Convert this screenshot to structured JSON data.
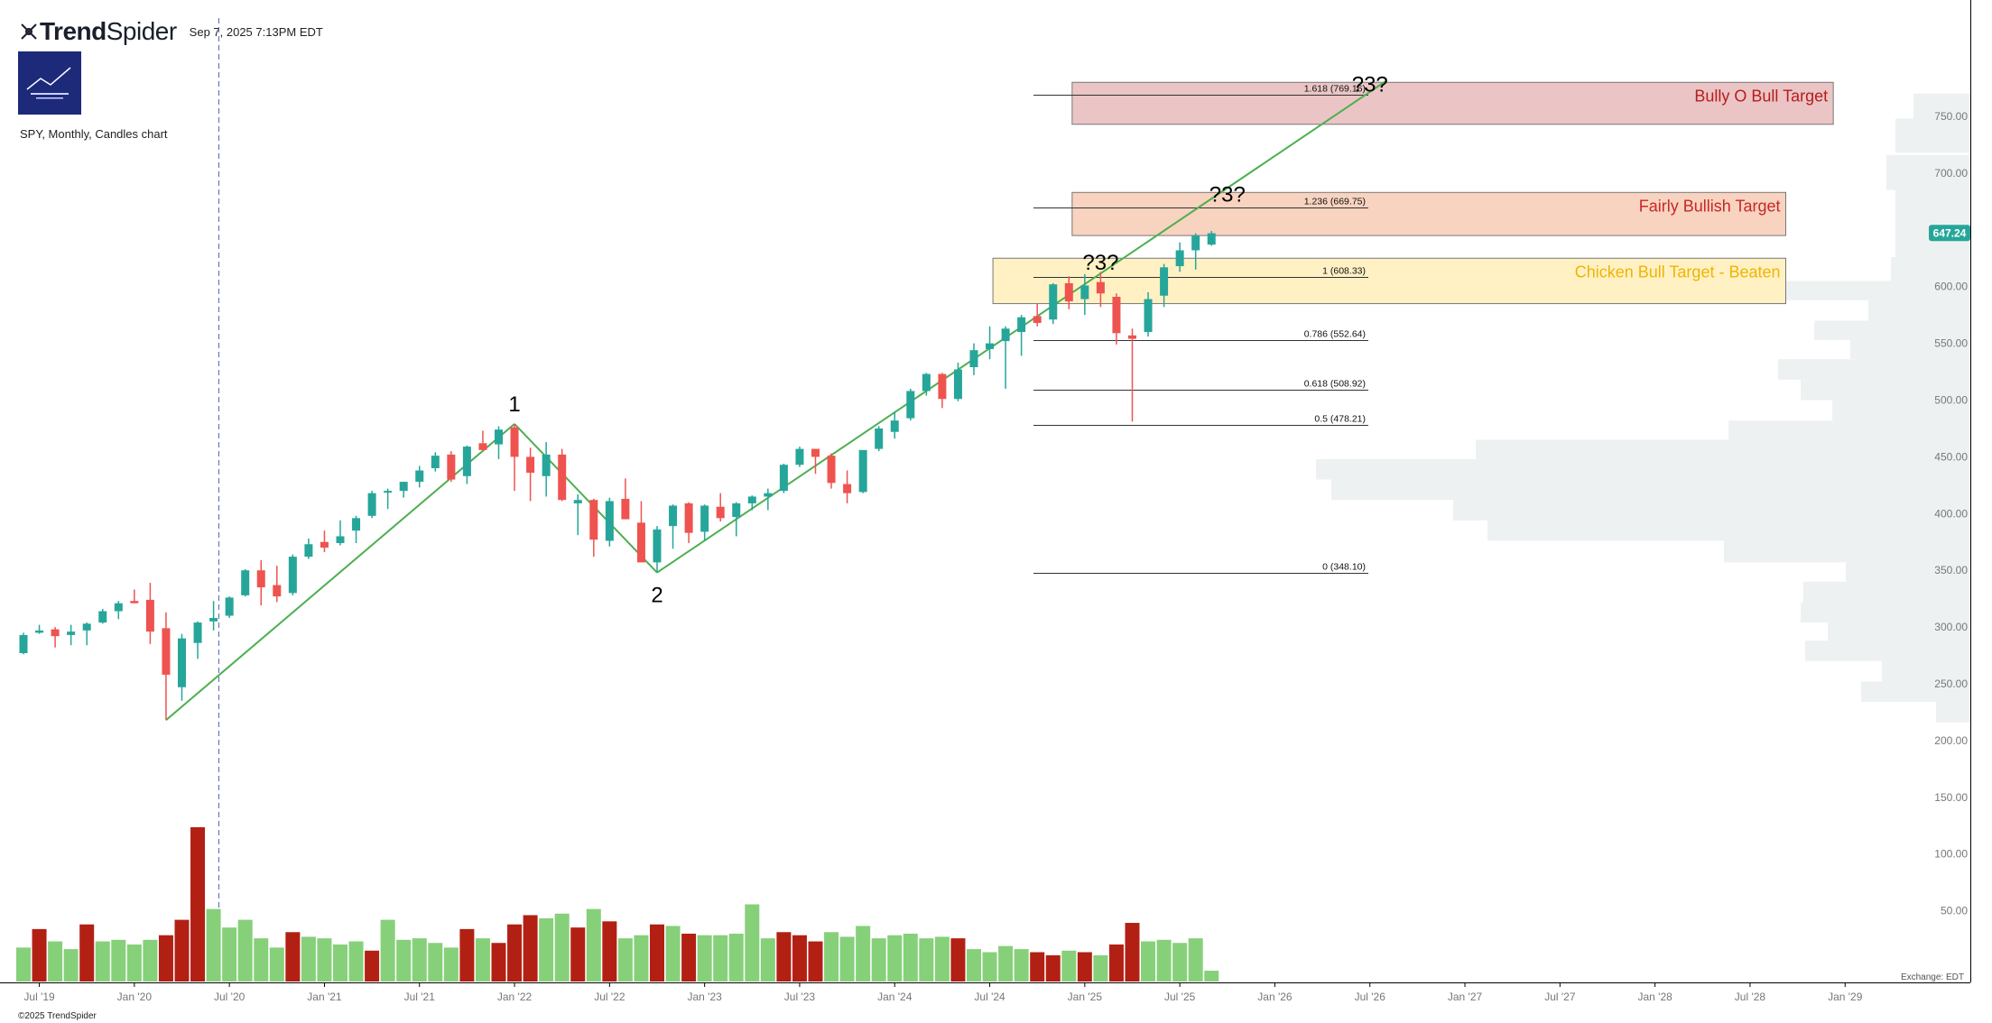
{
  "app": {
    "brand_prefix": "Trend",
    "brand_suffix": "Spider",
    "timestamp": "Sep 7, 2025 7:13PM EDT",
    "subtitle": "SPY, Monthly, Candles chart",
    "copyright": "©2025 TrendSpider",
    "exchange_label": "Exchange: EDT",
    "price_badge": "647.24",
    "icons": {
      "logo": "trendspider-logo-icon"
    },
    "colors": {
      "up": "#26a69a",
      "down": "#ef5350",
      "vol_up": "#86d07a",
      "vol_down": "#b22014",
      "trend": "#4caf50",
      "badge": "#26a69a"
    }
  },
  "chart_data": {
    "type": "candlestick",
    "symbol": "SPY",
    "interval": "Monthly",
    "x_tick_labels": [
      "Jul '19",
      "Jan '20",
      "Jul '20",
      "Jan '21",
      "Jul '21",
      "Jan '22",
      "Jul '22",
      "Jan '23",
      "Jul '23",
      "Jan '24",
      "Jul '24",
      "Jan '25",
      "Jul '25",
      "Jan '26",
      "Jul '26",
      "Jan '27",
      "Jul '27",
      "Jan '28",
      "Jul '28",
      "Jan '29"
    ],
    "y_tick_labels": [
      "50.00",
      "100.00",
      "150.00",
      "200.00",
      "250.00",
      "300.00",
      "350.00",
      "400.00",
      "450.00",
      "500.00",
      "550.00",
      "600.00",
      "650.00",
      "700.00",
      "750.00"
    ],
    "ylim": [
      0,
      800
    ],
    "candles": [
      {
        "date": "2019-06",
        "o": 277,
        "h": 295,
        "l": 276,
        "c": 293
      },
      {
        "date": "2019-07",
        "o": 295,
        "h": 302,
        "l": 294,
        "c": 297
      },
      {
        "date": "2019-08",
        "o": 298,
        "h": 300,
        "l": 282,
        "c": 292
      },
      {
        "date": "2019-09",
        "o": 293,
        "h": 302,
        "l": 284,
        "c": 296
      },
      {
        "date": "2019-10",
        "o": 297,
        "h": 304,
        "l": 284,
        "c": 303
      },
      {
        "date": "2019-11",
        "o": 304,
        "h": 316,
        "l": 303,
        "c": 314
      },
      {
        "date": "2019-12",
        "o": 314,
        "h": 323,
        "l": 307,
        "c": 321
      },
      {
        "date": "2020-01",
        "o": 323,
        "h": 333,
        "l": 321,
        "c": 321
      },
      {
        "date": "2020-02",
        "o": 324,
        "h": 339,
        "l": 285,
        "c": 296
      },
      {
        "date": "2020-03",
        "o": 299,
        "h": 313,
        "l": 218,
        "c": 258
      },
      {
        "date": "2020-04",
        "o": 247,
        "h": 294,
        "l": 235,
        "c": 290
      },
      {
        "date": "2020-05",
        "o": 286,
        "h": 305,
        "l": 272,
        "c": 304
      },
      {
        "date": "2020-06",
        "o": 305,
        "h": 323,
        "l": 297,
        "c": 308
      },
      {
        "date": "2020-07",
        "o": 310,
        "h": 327,
        "l": 308,
        "c": 326
      },
      {
        "date": "2020-08",
        "o": 328,
        "h": 351,
        "l": 327,
        "c": 350
      },
      {
        "date": "2020-09",
        "o": 350,
        "h": 359,
        "l": 319,
        "c": 335
      },
      {
        "date": "2020-10",
        "o": 337,
        "h": 354,
        "l": 322,
        "c": 327
      },
      {
        "date": "2020-11",
        "o": 330,
        "h": 364,
        "l": 328,
        "c": 362
      },
      {
        "date": "2020-12",
        "o": 362,
        "h": 378,
        "l": 360,
        "c": 373
      },
      {
        "date": "2021-01",
        "o": 375,
        "h": 385,
        "l": 366,
        "c": 370
      },
      {
        "date": "2021-02",
        "o": 374,
        "h": 394,
        "l": 372,
        "c": 380
      },
      {
        "date": "2021-03",
        "o": 385,
        "h": 398,
        "l": 374,
        "c": 396
      },
      {
        "date": "2021-04",
        "o": 398,
        "h": 420,
        "l": 396,
        "c": 418
      },
      {
        "date": "2021-05",
        "o": 419,
        "h": 422,
        "l": 404,
        "c": 420
      },
      {
        "date": "2021-06",
        "o": 420,
        "h": 428,
        "l": 414,
        "c": 428
      },
      {
        "date": "2021-07",
        "o": 428,
        "h": 442,
        "l": 423,
        "c": 438
      },
      {
        "date": "2021-08",
        "o": 440,
        "h": 454,
        "l": 437,
        "c": 451
      },
      {
        "date": "2021-09",
        "o": 452,
        "h": 455,
        "l": 428,
        "c": 430
      },
      {
        "date": "2021-10",
        "o": 433,
        "h": 460,
        "l": 426,
        "c": 459
      },
      {
        "date": "2021-11",
        "o": 462,
        "h": 473,
        "l": 455,
        "c": 456
      },
      {
        "date": "2021-12",
        "o": 461,
        "h": 477,
        "l": 448,
        "c": 474
      },
      {
        "date": "2022-01",
        "o": 476,
        "h": 479,
        "l": 420,
        "c": 450
      },
      {
        "date": "2022-02",
        "o": 450,
        "h": 458,
        "l": 411,
        "c": 436
      },
      {
        "date": "2022-03",
        "o": 433,
        "h": 463,
        "l": 415,
        "c": 452
      },
      {
        "date": "2022-04",
        "o": 452,
        "h": 457,
        "l": 411,
        "c": 412
      },
      {
        "date": "2022-05",
        "o": 409,
        "h": 417,
        "l": 381,
        "c": 412
      },
      {
        "date": "2022-06",
        "o": 412,
        "h": 413,
        "l": 362,
        "c": 377
      },
      {
        "date": "2022-07",
        "o": 376,
        "h": 414,
        "l": 371,
        "c": 411
      },
      {
        "date": "2022-08",
        "o": 413,
        "h": 431,
        "l": 395,
        "c": 395
      },
      {
        "date": "2022-09",
        "o": 392,
        "h": 411,
        "l": 357,
        "c": 357
      },
      {
        "date": "2022-10",
        "o": 357,
        "h": 389,
        "l": 348,
        "c": 386
      },
      {
        "date": "2022-11",
        "o": 389,
        "h": 408,
        "l": 369,
        "c": 407
      },
      {
        "date": "2022-12",
        "o": 409,
        "h": 410,
        "l": 374,
        "c": 383
      },
      {
        "date": "2023-01",
        "o": 384,
        "h": 408,
        "l": 376,
        "c": 407
      },
      {
        "date": "2023-02",
        "o": 406,
        "h": 418,
        "l": 393,
        "c": 396
      },
      {
        "date": "2023-03",
        "o": 397,
        "h": 410,
        "l": 380,
        "c": 409
      },
      {
        "date": "2023-04",
        "o": 409,
        "h": 416,
        "l": 403,
        "c": 415
      },
      {
        "date": "2023-05",
        "o": 415,
        "h": 422,
        "l": 403,
        "c": 418
      },
      {
        "date": "2023-06",
        "o": 420,
        "h": 444,
        "l": 418,
        "c": 443
      },
      {
        "date": "2023-07",
        "o": 443,
        "h": 459,
        "l": 441,
        "c": 457
      },
      {
        "date": "2023-08",
        "o": 457,
        "h": 457,
        "l": 435,
        "c": 450
      },
      {
        "date": "2023-09",
        "o": 451,
        "h": 453,
        "l": 422,
        "c": 427
      },
      {
        "date": "2023-10",
        "o": 426,
        "h": 438,
        "l": 409,
        "c": 418
      },
      {
        "date": "2023-11",
        "o": 419,
        "h": 456,
        "l": 418,
        "c": 456
      },
      {
        "date": "2023-12",
        "o": 457,
        "h": 477,
        "l": 455,
        "c": 475
      },
      {
        "date": "2024-01",
        "o": 472,
        "h": 490,
        "l": 466,
        "c": 482
      },
      {
        "date": "2024-02",
        "o": 484,
        "h": 510,
        "l": 482,
        "c": 508
      },
      {
        "date": "2024-03",
        "o": 508,
        "h": 524,
        "l": 504,
        "c": 523
      },
      {
        "date": "2024-04",
        "o": 523,
        "h": 524,
        "l": 493,
        "c": 501
      },
      {
        "date": "2024-05",
        "o": 501,
        "h": 533,
        "l": 499,
        "c": 527
      },
      {
        "date": "2024-06",
        "o": 529,
        "h": 550,
        "l": 522,
        "c": 544
      },
      {
        "date": "2024-07",
        "o": 545,
        "h": 565,
        "l": 536,
        "c": 550
      },
      {
        "date": "2024-08",
        "o": 552,
        "h": 565,
        "l": 510,
        "c": 563
      },
      {
        "date": "2024-09",
        "o": 560,
        "h": 575,
        "l": 539,
        "c": 573
      },
      {
        "date": "2024-10",
        "o": 574,
        "h": 585,
        "l": 565,
        "c": 568
      },
      {
        "date": "2024-11",
        "o": 571,
        "h": 603,
        "l": 567,
        "c": 602
      },
      {
        "date": "2024-12",
        "o": 603,
        "h": 609,
        "l": 580,
        "c": 587
      },
      {
        "date": "2025-01",
        "o": 589,
        "h": 611,
        "l": 575,
        "c": 601
      },
      {
        "date": "2025-02",
        "o": 604,
        "h": 613,
        "l": 582,
        "c": 594
      },
      {
        "date": "2025-03",
        "o": 591,
        "h": 594,
        "l": 549,
        "c": 559
      },
      {
        "date": "2025-04",
        "o": 557,
        "h": 563,
        "l": 481,
        "c": 554
      },
      {
        "date": "2025-05",
        "o": 560,
        "h": 595,
        "l": 556,
        "c": 589
      },
      {
        "date": "2025-06",
        "o": 592,
        "h": 620,
        "l": 582,
        "c": 617
      },
      {
        "date": "2025-07",
        "o": 618,
        "h": 639,
        "l": 613,
        "c": 632
      },
      {
        "date": "2025-08",
        "o": 632,
        "h": 647,
        "l": 615,
        "c": 645
      },
      {
        "date": "2025-09",
        "o": 637,
        "h": 649,
        "l": 636,
        "c": 647
      }
    ],
    "volume_relative": [
      0.22,
      0.34,
      0.26,
      0.21,
      0.37,
      0.26,
      0.27,
      0.24,
      0.27,
      0.3,
      0.4,
      1.0,
      0.47,
      0.35,
      0.4,
      0.28,
      0.22,
      0.32,
      0.29,
      0.28,
      0.24,
      0.26,
      0.2,
      0.4,
      0.27,
      0.28,
      0.25,
      0.22,
      0.34,
      0.28,
      0.25,
      0.37,
      0.43,
      0.41,
      0.44,
      0.35,
      0.47,
      0.39,
      0.28,
      0.3,
      0.37,
      0.36,
      0.31,
      0.3,
      0.3,
      0.31,
      0.5,
      0.28,
      0.32,
      0.3,
      0.26,
      0.32,
      0.29,
      0.36,
      0.28,
      0.3,
      0.31,
      0.28,
      0.29,
      0.28,
      0.21,
      0.19,
      0.23,
      0.21,
      0.19,
      0.17,
      0.2,
      0.19,
      0.17,
      0.24,
      0.38,
      0.26,
      0.27,
      0.25,
      0.28,
      0.07
    ],
    "volume_down": [
      false,
      true,
      false,
      false,
      true,
      false,
      false,
      false,
      false,
      true,
      true,
      true,
      false,
      false,
      false,
      false,
      false,
      true,
      false,
      false,
      false,
      false,
      true,
      false,
      false,
      false,
      false,
      false,
      true,
      false,
      true,
      true,
      true,
      false,
      false,
      true,
      false,
      true,
      false,
      false,
      true,
      false,
      true,
      false,
      false,
      false,
      false,
      false,
      true,
      true,
      true,
      false,
      false,
      false,
      false,
      false,
      false,
      false,
      false,
      true,
      false,
      false,
      false,
      false,
      true,
      true,
      false,
      true,
      false,
      true,
      true,
      false,
      false,
      false,
      false,
      false
    ],
    "fib_levels": [
      {
        "ratio": "1.618",
        "price": 769.16,
        "label": "1.618 (769.16)"
      },
      {
        "ratio": "1.236",
        "price": 669.75,
        "label": "1.236 (669.75)"
      },
      {
        "ratio": "1",
        "price": 608.33,
        "label": "1 (608.33)"
      },
      {
        "ratio": "0.786",
        "price": 552.64,
        "label": "0.786 (552.64)"
      },
      {
        "ratio": "0.618",
        "price": 508.92,
        "label": "0.618 (508.92)"
      },
      {
        "ratio": "0.5",
        "price": 478.21,
        "label": "0.5 (478.21)"
      },
      {
        "ratio": "0",
        "price": 348.1,
        "label": "0 (348.10)"
      }
    ],
    "target_zones": [
      {
        "label": "Bully O Bull Target",
        "top": 780,
        "bottom": 743,
        "fill": "#ebc5c5",
        "stroke": "#777",
        "text_color": "#b71c1c",
        "start": "2025-01",
        "end": "2028-11"
      },
      {
        "label": "Fairly Bullish Target",
        "top": 683,
        "bottom": 645,
        "fill": "#f8d3c0",
        "stroke": "#777",
        "text_color": "#c62828",
        "start": "2025-01",
        "end": "2028-08"
      },
      {
        "label": "Chicken Bull Target - Beaten",
        "top": 625,
        "bottom": 585,
        "fill": "#fff1c4",
        "stroke": "#777",
        "text_color": "#f0b400",
        "start": "2024-08",
        "end": "2028-08"
      }
    ],
    "question_marks": [
      {
        "text": "?3?",
        "price": 772,
        "date": "2026-07"
      },
      {
        "text": "?3?",
        "price": 675,
        "date": "2025-10"
      },
      {
        "text": "?3?",
        "price": 615,
        "date": "2025-02"
      }
    ],
    "wave_labels": [
      {
        "text": "1",
        "price": 490
      },
      {
        "text": "2",
        "price": 322
      }
    ],
    "trendlines": [
      {
        "from": {
          "date": "2020-03",
          "price": 218
        },
        "to": {
          "date": "2022-01",
          "price": 479
        }
      },
      {
        "from": {
          "date": "2022-01",
          "price": 479
        },
        "to": {
          "date": "2022-10",
          "price": 348
        }
      },
      {
        "from": {
          "date": "2022-10",
          "price": 348
        },
        "to": {
          "date": "2026-08",
          "price": 781
        }
      }
    ]
  }
}
